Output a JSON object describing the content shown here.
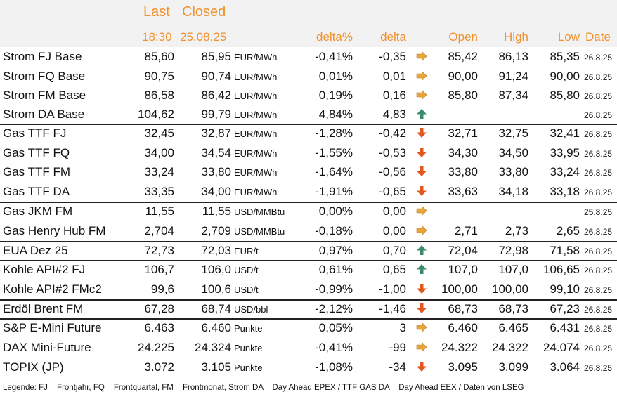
{
  "header": {
    "last": "Last",
    "closed": "Closed",
    "last_time": "18:30",
    "closed_date": "25.08.25",
    "delta_pct": "delta%",
    "delta": "delta",
    "open": "Open",
    "high": "High",
    "low": "Low",
    "date": "Date"
  },
  "colors": {
    "header_text": "#f0912d",
    "up": "#3c8c6c",
    "down": "#e2571e",
    "flat": "#e8a53a"
  },
  "rows": [
    {
      "name": "Strom FJ Base",
      "last": "85,60",
      "closed": "85,95",
      "unit": "EUR/MWh",
      "dpct": "-0,41%",
      "delta": "-0,35",
      "trend": "flat",
      "open": "85,42",
      "high": "86,13",
      "low": "85,35",
      "date": "26.8.25"
    },
    {
      "name": "Strom FQ Base",
      "last": "90,75",
      "closed": "90,74",
      "unit": "EUR/MWh",
      "dpct": "0,01%",
      "delta": "0,01",
      "trend": "flat",
      "open": "90,00",
      "high": "91,24",
      "low": "90,00",
      "date": "26.8.25"
    },
    {
      "name": "Strom FM Base",
      "last": "86,58",
      "closed": "86,42",
      "unit": "EUR/MWh",
      "dpct": "0,19%",
      "delta": "0,16",
      "trend": "flat",
      "open": "85,80",
      "high": "87,34",
      "low": "85,80",
      "date": "26.8.25"
    },
    {
      "name": "Strom DA Base",
      "last": "104,62",
      "closed": "99,79",
      "unit": "EUR/MWh",
      "dpct": "4,84%",
      "delta": "4,83",
      "trend": "up",
      "open": "",
      "high": "",
      "low": "",
      "date": "26.8.25"
    },
    {
      "name": "Gas TTF FJ",
      "last": "32,45",
      "closed": "32,87",
      "unit": "EUR/MWh",
      "dpct": "-1,28%",
      "delta": "-0,42",
      "trend": "down",
      "open": "32,71",
      "high": "32,75",
      "low": "32,41",
      "date": "26.8.25"
    },
    {
      "name": "Gas TTF FQ",
      "last": "34,00",
      "closed": "34,54",
      "unit": "EUR/MWh",
      "dpct": "-1,55%",
      "delta": "-0,53",
      "trend": "down",
      "open": "34,30",
      "high": "34,50",
      "low": "33,95",
      "date": "26.8.25"
    },
    {
      "name": "Gas TTF FM",
      "last": "33,24",
      "closed": "33,80",
      "unit": "EUR/MWh",
      "dpct": "-1,64%",
      "delta": "-0,56",
      "trend": "down",
      "open": "33,80",
      "high": "33,80",
      "low": "33,24",
      "date": "26.8.25"
    },
    {
      "name": "Gas TTF DA",
      "last": "33,35",
      "closed": "34,00",
      "unit": "EUR/MWh",
      "dpct": "-1,91%",
      "delta": "-0,65",
      "trend": "down",
      "open": "33,63",
      "high": "34,18",
      "low": "33,18",
      "date": "26.8.25"
    },
    {
      "name": "Gas JKM FM",
      "last": "11,55",
      "closed": "11,55",
      "unit": "USD/MMBtu",
      "dpct": "0,00%",
      "delta": "0,00",
      "trend": "flat",
      "open": "",
      "high": "",
      "low": "",
      "date": "25.8.25"
    },
    {
      "name": "Gas Henry Hub FM",
      "last": "2,704",
      "closed": "2,709",
      "unit": "USD/MMBtu",
      "dpct": "-0,18%",
      "delta": "0,00",
      "trend": "flat",
      "open": "2,71",
      "high": "2,73",
      "low": "2,65",
      "date": "26.8.25"
    },
    {
      "name": "EUA Dez 25",
      "last": "72,73",
      "closed": "72,03",
      "unit": "EUR/t",
      "dpct": "0,97%",
      "delta": "0,70",
      "trend": "up",
      "open": "72,04",
      "high": "72,98",
      "low": "71,58",
      "date": "26.8.25"
    },
    {
      "name": "Kohle API#2 FJ",
      "last": "106,7",
      "closed": "106,0",
      "unit": "USD/t",
      "dpct": "0,61%",
      "delta": "0,65",
      "trend": "up",
      "open": "107,0",
      "high": "107,0",
      "low": "106,65",
      "date": "26.8.25"
    },
    {
      "name": "Kohle API#2 FMc2",
      "last": "99,6",
      "closed": "100,6",
      "unit": "USD/t",
      "dpct": "-0,99%",
      "delta": "-1,00",
      "trend": "down",
      "open": "100,00",
      "high": "100,00",
      "low": "99,10",
      "date": "26.8.25"
    },
    {
      "name": "Erdöl Brent FM",
      "last": "67,28",
      "closed": "68,74",
      "unit": "USD/bbl",
      "dpct": "-2,12%",
      "delta": "-1,46",
      "trend": "down",
      "open": "68,73",
      "high": "68,73",
      "low": "67,23",
      "date": "26.8.25"
    },
    {
      "name": "S&P E-Mini Future",
      "last": "6.463",
      "closed": "6.460",
      "unit": "Punkte",
      "dpct": "0,05%",
      "delta": "3",
      "trend": "flat",
      "open": "6.460",
      "high": "6.465",
      "low": "6.431",
      "date": "26.8.25"
    },
    {
      "name": "DAX Mini-Future",
      "last": "24.225",
      "closed": "24.324",
      "unit": "Punkte",
      "dpct": "-0,41%",
      "delta": "-99",
      "trend": "flat",
      "open": "24.322",
      "high": "24.322",
      "low": "24.074",
      "date": "26.8.25"
    },
    {
      "name": "TOPIX (JP)",
      "last": "3.072",
      "closed": "3.105",
      "unit": "Punkte",
      "dpct": "-1,08%",
      "delta": "-34",
      "trend": "down",
      "open": "3.095",
      "high": "3.099",
      "low": "3.064",
      "date": "26.8.25"
    }
  ],
  "legend": "Legende: FJ = Frontjahr, FQ = Frontquartal, FM = Frontmonat, Strom DA = Day Ahead EPEX / TTF GAS DA = Day Ahead EEX / Daten von LSEG"
}
